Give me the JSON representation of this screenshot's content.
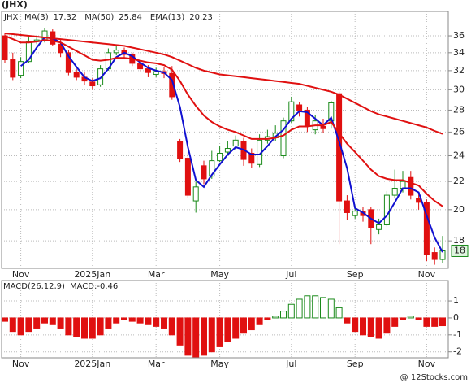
{
  "chart_data": [
    {
      "type": "candlestick",
      "title": "(JHX)",
      "symbol": "JHX",
      "log_y": true,
      "grid": true,
      "price_label": "18",
      "categories": [
        null,
        null,
        "Nov",
        null,
        null,
        null,
        null,
        null,
        null,
        null,
        null,
        "2025Jan",
        null,
        null,
        null,
        null,
        null,
        null,
        null,
        "Mar",
        null,
        null,
        null,
        null,
        null,
        null,
        null,
        "May",
        null,
        null,
        null,
        null,
        null,
        null,
        null,
        null,
        "Jul",
        null,
        null,
        null,
        null,
        null,
        null,
        null,
        "Sep",
        null,
        null,
        null,
        null,
        null,
        null,
        null,
        null,
        "Nov",
        null,
        null
      ],
      "open": [
        36,
        33.2,
        31.5,
        33,
        35.3,
        35.5,
        36.5,
        35,
        34,
        31.8,
        31.3,
        30.8,
        30.5,
        32.2,
        34,
        34.3,
        33.8,
        32.8,
        32.2,
        31.6,
        31.9,
        31.7,
        25.2,
        23.8,
        20.6,
        23.2,
        22.4,
        23.6,
        24.3,
        24.8,
        25.2,
        24.2,
        23.3,
        25.3,
        25.5,
        24,
        27,
        28.5,
        28,
        26.2,
        26.5,
        27,
        29.6,
        20.6,
        19.6,
        19.9,
        20,
        18.7,
        19,
        21,
        21.5,
        22.3,
        20.8,
        20.5,
        17.3,
        16.9
      ],
      "high": [
        36.3,
        34,
        33.5,
        35.8,
        36,
        37,
        36.8,
        35.5,
        34.3,
        32.2,
        31.8,
        31.2,
        32.6,
        34.5,
        34.8,
        34.6,
        34,
        33.2,
        32.6,
        32.3,
        32.4,
        32.5,
        25.4,
        24.2,
        22,
        23.6,
        24.4,
        24.8,
        25.2,
        25.7,
        25.5,
        24.6,
        25.8,
        26.2,
        26.6,
        27.3,
        29.3,
        28.8,
        28.3,
        27.5,
        27.2,
        28.9,
        29.8,
        21,
        20.3,
        20.2,
        20.2,
        19.4,
        21.3,
        22.9,
        22.8,
        22.8,
        21.2,
        20.7,
        17.6,
        18.3
      ],
      "low": [
        32.8,
        31,
        31.2,
        32.8,
        35,
        35.2,
        34.8,
        33.5,
        31.5,
        31,
        30.5,
        30,
        30.3,
        32,
        33.7,
        33.3,
        32.5,
        31.9,
        31.3,
        31.3,
        31.2,
        29,
        23.5,
        20.8,
        19.8,
        21.8,
        22.2,
        23.5,
        24,
        24.5,
        23.2,
        23,
        23.1,
        25,
        25.2,
        23.8,
        26.8,
        27.4,
        26,
        25.8,
        25.9,
        26.3,
        17.8,
        19.3,
        19.4,
        19.2,
        17.8,
        18.4,
        18.9,
        20.8,
        21.2,
        20.7,
        20,
        16.8,
        16.6,
        16.7
      ],
      "close": [
        33.2,
        31.3,
        33,
        35.3,
        35.5,
        36.6,
        35,
        34,
        31.8,
        31.3,
        30.9,
        30.4,
        32.2,
        34,
        34.3,
        33.8,
        32.8,
        32.2,
        31.8,
        31.9,
        31.7,
        29.3,
        23.8,
        21,
        21.6,
        22.2,
        23.6,
        24.2,
        24.6,
        25.3,
        23.7,
        23.4,
        25.3,
        25.6,
        25.9,
        27,
        28.8,
        28,
        26.5,
        27,
        26.3,
        28.7,
        20.6,
        19.8,
        19.9,
        19.6,
        18.8,
        19,
        21,
        21.5,
        22,
        21,
        20.5,
        17.2,
        16.9,
        17.4
      ],
      "up_color": "#1a8a1a",
      "down_color": "#e01010",
      "series": [
        {
          "name": "MA(3)",
          "color": "#1010d0",
          "values": [
            null,
            null,
            32.5,
            33.2,
            34.6,
            35.8,
            35.7,
            35.2,
            33.6,
            32.4,
            31.3,
            30.9,
            31.2,
            32.2,
            33.5,
            34,
            33.6,
            32.9,
            32.3,
            32,
            31.8,
            31,
            28.3,
            24.7,
            22.1,
            21.6,
            22.5,
            23.3,
            24.1,
            24.7,
            24.5,
            24.1,
            24.1,
            24.8,
            25.6,
            26.2,
            27.2,
            27.9,
            27.8,
            27.2,
            26.6,
            27.3,
            25.2,
            23,
            20.1,
            19.8,
            19.4,
            19.1,
            19.6,
            20.5,
            21.5,
            21.5,
            21.2,
            19.6,
            18.2,
            17.32
          ]
        },
        {
          "name": "MA(50)",
          "color": "#e01010",
          "values": [
            36.3,
            36.2,
            36.1,
            36,
            35.9,
            35.8,
            35.7,
            35.6,
            35.5,
            35.4,
            35.3,
            35.2,
            35.1,
            35,
            34.9,
            34.8,
            34.6,
            34.4,
            34.2,
            34,
            33.8,
            33.5,
            33.1,
            32.7,
            32.3,
            32,
            31.8,
            31.6,
            31.5,
            31.4,
            31.3,
            31.2,
            31.1,
            31,
            30.9,
            30.8,
            30.7,
            30.6,
            30.4,
            30.2,
            30,
            29.8,
            29.5,
            29.1,
            28.7,
            28.3,
            27.9,
            27.6,
            27.4,
            27.2,
            27,
            26.8,
            26.6,
            26.4,
            26.1,
            25.84
          ]
        },
        {
          "name": "EMA(13)",
          "color": "#e01010",
          "values": [
            36,
            35.6,
            35.2,
            35.2,
            35.3,
            35.5,
            35.4,
            35.2,
            34.7,
            34.2,
            33.7,
            33.2,
            33.1,
            33.2,
            33.4,
            33.4,
            33.3,
            33.1,
            32.9,
            32.8,
            32.6,
            32.1,
            30.9,
            29.5,
            28.4,
            27.5,
            26.9,
            26.5,
            26.2,
            26,
            25.7,
            25.4,
            25.4,
            25.4,
            25.5,
            25.7,
            26.2,
            26.5,
            26.5,
            26.6,
            26.6,
            26.9,
            25.9,
            25,
            24.3,
            23.6,
            22.9,
            22.4,
            22.2,
            22.1,
            22.1,
            21.9,
            21.7,
            21.1,
            20.6,
            20.23
          ]
        }
      ],
      "ylim": [
        16.4,
        39.1
      ],
      "yticks": [
        18,
        20,
        22,
        24,
        26,
        28,
        30,
        32,
        34,
        36
      ]
    },
    {
      "type": "bar",
      "title": "MACD(26,12,9)",
      "subtitle": "MACD:-0.46",
      "grid": true,
      "categories": [
        null,
        null,
        "Nov",
        null,
        null,
        null,
        null,
        null,
        null,
        null,
        null,
        "2025Jan",
        null,
        null,
        null,
        null,
        null,
        null,
        null,
        "Mar",
        null,
        null,
        null,
        null,
        null,
        null,
        null,
        "May",
        null,
        null,
        null,
        null,
        null,
        null,
        null,
        null,
        "Jul",
        null,
        null,
        null,
        null,
        null,
        null,
        null,
        "Sep",
        null,
        null,
        null,
        null,
        null,
        null,
        null,
        null,
        "Nov",
        null,
        null
      ],
      "values": [
        -0.2,
        -0.8,
        -1,
        -0.8,
        -0.6,
        -0.3,
        -0.4,
        -0.6,
        -1,
        -1.1,
        -1.2,
        -1.2,
        -1,
        -0.6,
        -0.3,
        -0.1,
        -0.2,
        -0.3,
        -0.4,
        -0.5,
        -0.6,
        -1,
        -1.6,
        -2.2,
        -2.3,
        -2.2,
        -2,
        -1.7,
        -1.4,
        -1.2,
        -0.9,
        -0.7,
        -0.4,
        -0.1,
        0.1,
        0.4,
        0.8,
        1.1,
        1.3,
        1.3,
        1.2,
        1.1,
        0.6,
        -0.3,
        -0.8,
        -1,
        -1.1,
        -1.2,
        -0.9,
        -0.5,
        -0.1,
        0.1,
        -0.1,
        -0.5,
        -0.5,
        -0.46
      ],
      "up_color": "#1a8a1a",
      "down_color": "#e01010",
      "ylim": [
        -2.35,
        2.2
      ],
      "yticks": [
        1,
        0,
        -1,
        -2
      ]
    }
  ],
  "watermark": "@ 12Stocks.com"
}
